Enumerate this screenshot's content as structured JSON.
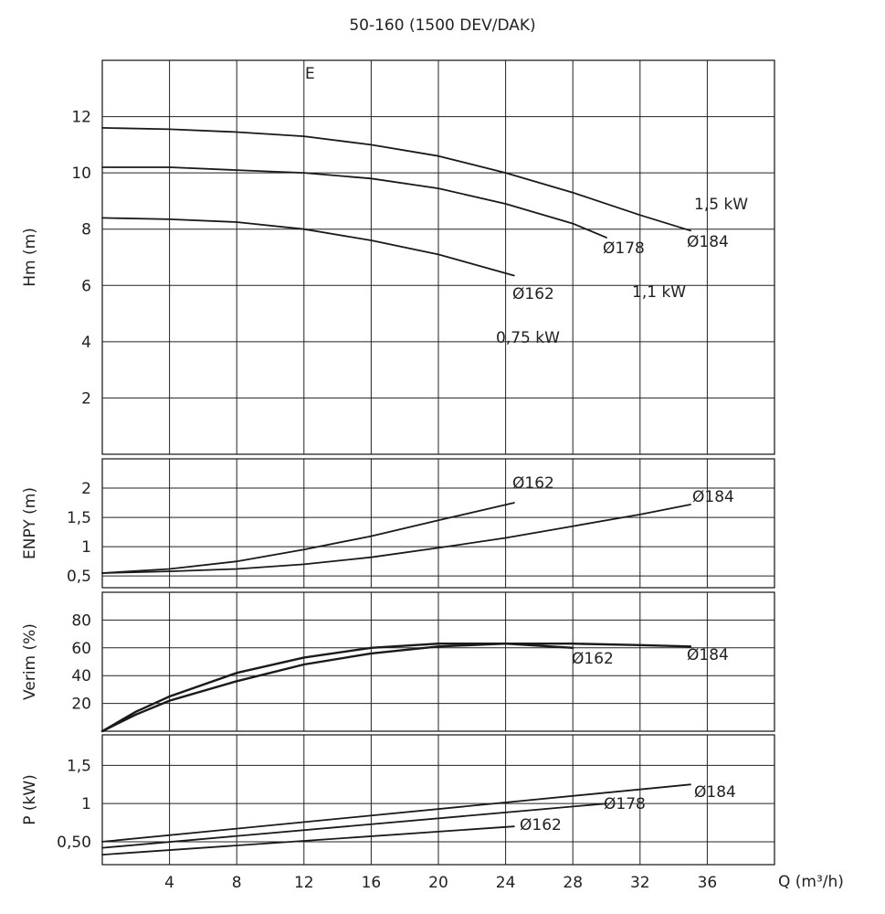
{
  "title": "50-160 (1500 DEV/DAK)",
  "x_label": "Q (m³/h)",
  "colors": {
    "grid": "#222222",
    "curve": "#1a1a1a",
    "power_label": "#c00000"
  },
  "chart_data": [
    {
      "type": "line",
      "panel": "head",
      "ylabel": "Hm (m)",
      "annotation": "E",
      "xlim": [
        0,
        40
      ],
      "ylim": [
        0,
        14
      ],
      "x_ticks": [
        4,
        8,
        12,
        16,
        20,
        24,
        28,
        32,
        36
      ],
      "y_ticks": [
        2,
        4,
        6,
        8,
        10,
        12
      ],
      "grid": true,
      "series": [
        {
          "name": "Ø184",
          "x": [
            0,
            4,
            8,
            12,
            16,
            20,
            24,
            28,
            32,
            35
          ],
          "y": [
            11.6,
            11.55,
            11.45,
            11.3,
            11.0,
            10.6,
            10.0,
            9.3,
            8.5,
            7.95
          ]
        },
        {
          "name": "Ø178",
          "x": [
            0,
            4,
            8,
            12,
            16,
            20,
            24,
            28,
            30
          ],
          "y": [
            10.2,
            10.2,
            10.1,
            10.0,
            9.8,
            9.45,
            8.9,
            8.2,
            7.7
          ]
        },
        {
          "name": "Ø162",
          "x": [
            0,
            4,
            8,
            12,
            16,
            20,
            24.5
          ],
          "y": [
            8.4,
            8.35,
            8.25,
            8.0,
            7.6,
            7.1,
            6.35
          ]
        }
      ],
      "annotations": [
        "1,5 kW",
        "1,1 kW",
        "0,75 kW"
      ]
    },
    {
      "type": "line",
      "panel": "npsh",
      "ylabel": "ENPY (m)",
      "xlim": [
        0,
        40
      ],
      "ylim": [
        0.3,
        2.5
      ],
      "y_ticks": [
        0.5,
        1,
        1.5,
        2
      ],
      "y_tick_labels": [
        "0,5",
        "1",
        "1,5",
        "2"
      ],
      "grid": true,
      "series": [
        {
          "name": "Ø162",
          "x": [
            0,
            4,
            8,
            12,
            16,
            20,
            24.5
          ],
          "y": [
            0.55,
            0.62,
            0.75,
            0.95,
            1.18,
            1.45,
            1.75
          ]
        },
        {
          "name": "Ø184",
          "x": [
            0,
            4,
            8,
            12,
            16,
            20,
            24,
            28,
            32,
            35
          ],
          "y": [
            0.55,
            0.58,
            0.62,
            0.7,
            0.82,
            0.98,
            1.15,
            1.35,
            1.55,
            1.72
          ]
        }
      ]
    },
    {
      "type": "line",
      "panel": "efficiency",
      "ylabel": "Verim (%)",
      "xlim": [
        0,
        40
      ],
      "ylim": [
        0,
        100
      ],
      "y_ticks": [
        20,
        40,
        60,
        80
      ],
      "grid": true,
      "series": [
        {
          "name": "Ø162",
          "x": [
            0,
            2,
            4,
            8,
            12,
            16,
            20,
            24,
            28
          ],
          "y": [
            0,
            14,
            25,
            42,
            53,
            60,
            63,
            63,
            60
          ]
        },
        {
          "name": "Ø184",
          "x": [
            0,
            2,
            4,
            8,
            12,
            16,
            20,
            24,
            28,
            32,
            35
          ],
          "y": [
            0,
            12,
            22,
            36,
            48,
            56,
            61,
            63,
            63,
            62,
            61
          ]
        }
      ]
    },
    {
      "type": "line",
      "panel": "power",
      "ylabel": "P (kW)",
      "xlim": [
        0,
        40
      ],
      "ylim": [
        0.2,
        1.9
      ],
      "y_ticks": [
        0.5,
        1,
        1.5
      ],
      "y_tick_labels": [
        "0,50",
        "1",
        "1,5"
      ],
      "grid": true,
      "series": [
        {
          "name": "Ø184",
          "x": [
            0,
            35
          ],
          "y": [
            0.5,
            1.25
          ]
        },
        {
          "name": "Ø178",
          "x": [
            0,
            30
          ],
          "y": [
            0.42,
            1.0
          ]
        },
        {
          "name": "Ø162",
          "x": [
            0,
            24.5
          ],
          "y": [
            0.33,
            0.7
          ]
        }
      ]
    }
  ]
}
